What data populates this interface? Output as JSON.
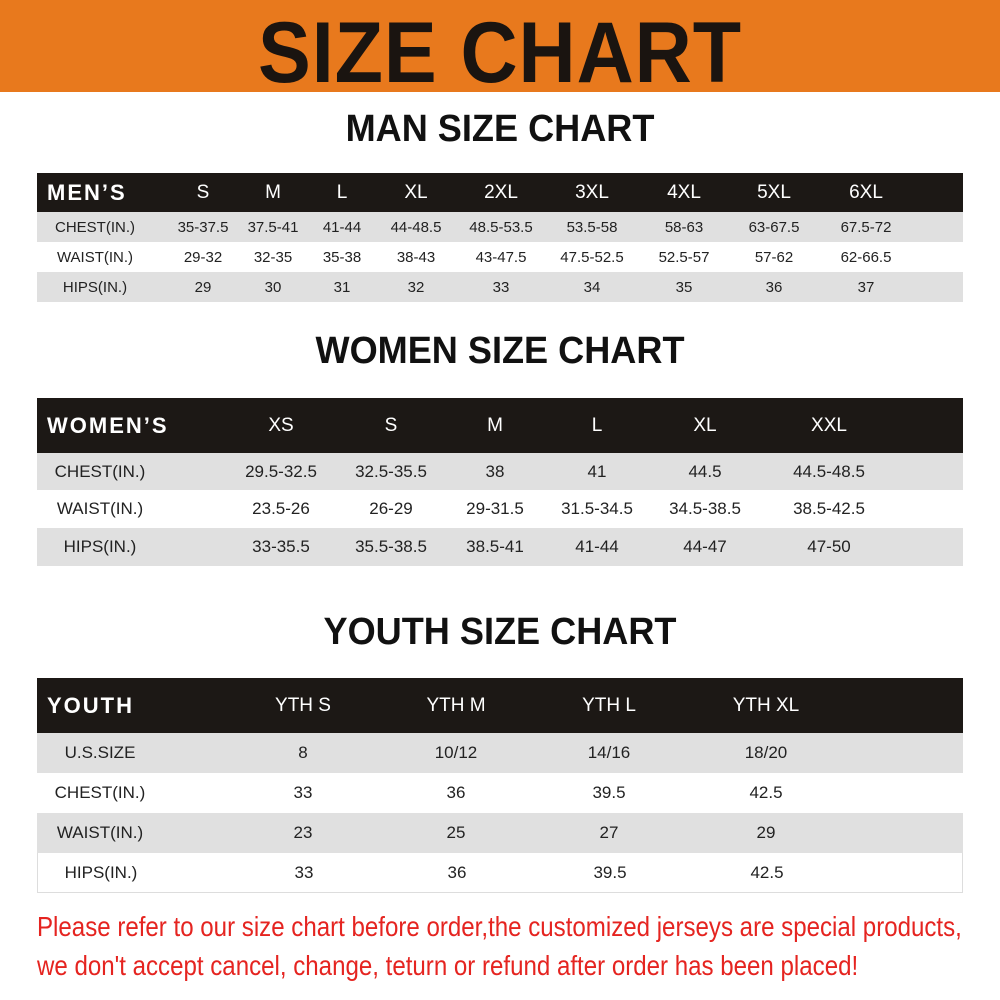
{
  "banner": {
    "title": "SIZE CHART",
    "color": "#E8791D"
  },
  "men": {
    "title": "MAN SIZE CHART",
    "header": [
      "MEN’S",
      "S",
      "M",
      "L",
      "XL",
      "2XL",
      "3XL",
      "4XL",
      "5XL",
      "6XL"
    ],
    "rows": [
      [
        "CHEST(IN.)",
        "35-37.5",
        "37.5-41",
        "41-44",
        "44-48.5",
        "48.5-53.5",
        "53.5-58",
        "58-63",
        "63-67.5",
        "67.5-72"
      ],
      [
        "WAIST(IN.)",
        "29-32",
        "32-35",
        "35-38",
        "38-43",
        "43-47.5",
        "47.5-52.5",
        "52.5-57",
        "57-62",
        "62-66.5"
      ],
      [
        "HIPS(IN.)",
        "29",
        "30",
        "31",
        "32",
        "33",
        "34",
        "35",
        "36",
        "37"
      ]
    ]
  },
  "women": {
    "title": "WOMEN SIZE CHART",
    "header": [
      "WOMEN’S",
      "XS",
      "S",
      "M",
      "L",
      "XL",
      "XXL"
    ],
    "rows": [
      [
        "CHEST(IN.)",
        "29.5-32.5",
        "32.5-35.5",
        "38",
        "41",
        "44.5",
        "44.5-48.5"
      ],
      [
        "WAIST(IN.)",
        "23.5-26",
        "26-29",
        "29-31.5",
        "31.5-34.5",
        "34.5-38.5",
        "38.5-42.5"
      ],
      [
        "HIPS(IN.)",
        "33-35.5",
        "35.5-38.5",
        "38.5-41",
        "41-44",
        "44-47",
        "47-50"
      ]
    ]
  },
  "youth": {
    "title": "YOUTH SIZE CHART",
    "header": [
      "YOUTH",
      "YTH S",
      "YTH M",
      "YTH L",
      "YTH XL"
    ],
    "rows": [
      [
        "U.S.SIZE",
        "8",
        "10/12",
        "14/16",
        "18/20"
      ],
      [
        "CHEST(IN.)",
        "33",
        "36",
        "39.5",
        "42.5"
      ],
      [
        "WAIST(IN.)",
        "23",
        "25",
        "27",
        "29"
      ],
      [
        "HIPS(IN.)",
        "33",
        "36",
        "39.5",
        "42.5"
      ]
    ]
  },
  "notice": {
    "line1": "Please refer to our size chart before order,the customized jerseys are special products,",
    "line2": "we don't accept cancel, change, teturn or refund after order has been placed!",
    "color": "#E52420"
  }
}
